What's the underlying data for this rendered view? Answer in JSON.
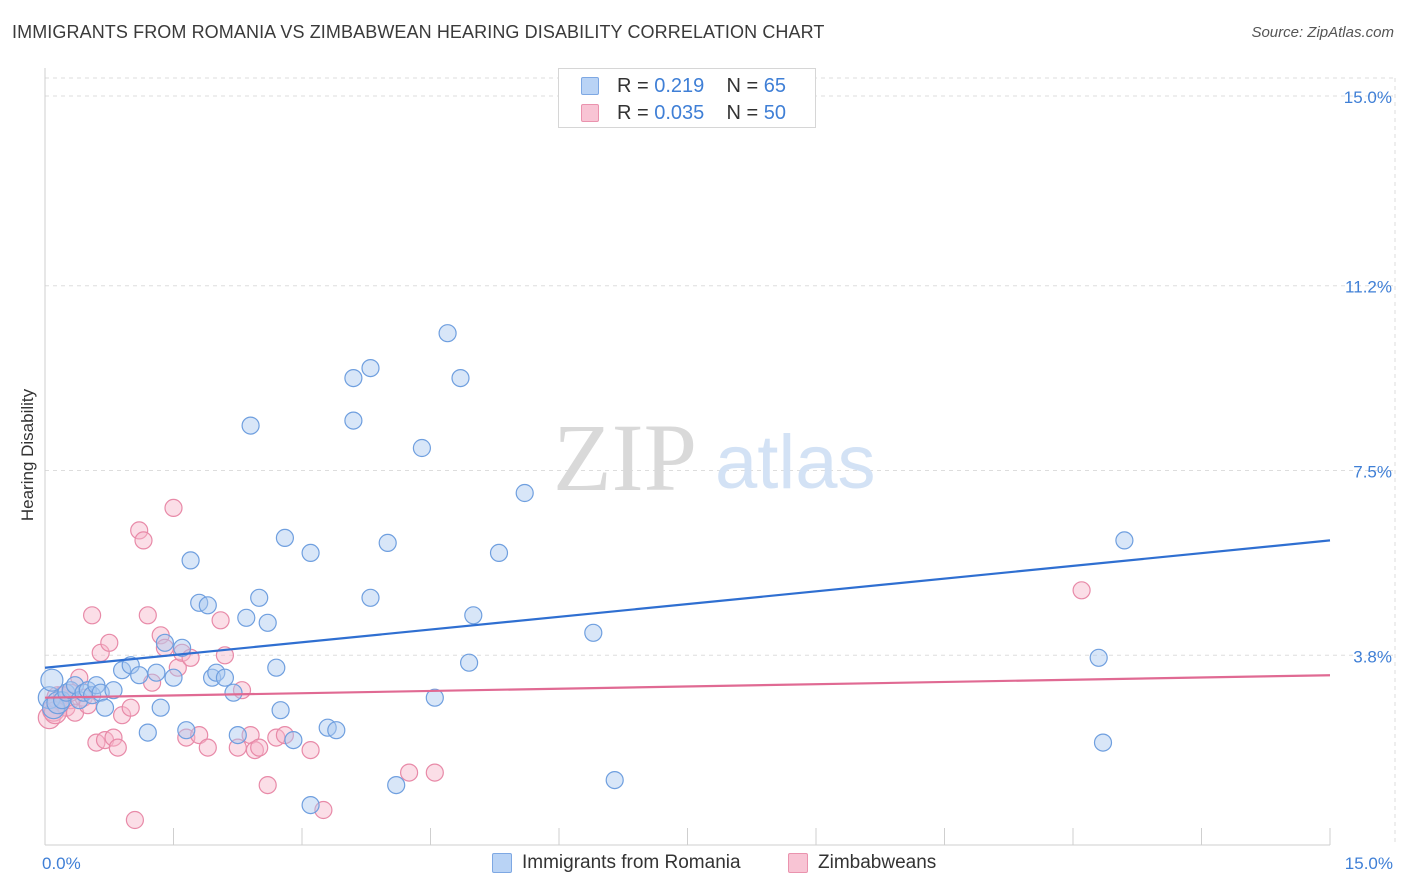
{
  "header": {
    "title": "IMMIGRANTS FROM ROMANIA VS ZIMBABWEAN HEARING DISABILITY CORRELATION CHART",
    "source": "Source: ZipAtlas.com"
  },
  "watermark": {
    "part1": "ZIP",
    "part2": "atlas"
  },
  "legend": {
    "rows": [
      {
        "r_label": "R = ",
        "r_value": "0.219",
        "n_label": "N = ",
        "n_value": "65"
      },
      {
        "r_label": "R = ",
        "r_value": "0.035",
        "n_label": "N = ",
        "n_value": "50"
      }
    ]
  },
  "colors": {
    "blue_fill": "#a9c7f0",
    "blue_stroke": "#6f9fdf",
    "blue_line": "#2f6fd1",
    "pink_fill": "#f6b5c9",
    "pink_stroke": "#e88aa8",
    "pink_line": "#e06a93",
    "tick_label": "#3f7fd6",
    "grid": "#dddddd"
  },
  "chart_data": {
    "type": "scatter",
    "title": "IMMIGRANTS FROM ROMANIA VS ZIMBABWEAN HEARING DISABILITY CORRELATION CHART",
    "xlabel": "",
    "ylabel": "Hearing Disability",
    "xlim": [
      0,
      15
    ],
    "ylim": [
      0,
      15.5
    ],
    "x_tick_labels": [
      "0.0%",
      "15.0%"
    ],
    "y_ticks": [
      3.8,
      7.5,
      11.2,
      15.0
    ],
    "y_tick_labels": [
      "3.8%",
      "7.5%",
      "11.2%",
      "15.0%"
    ],
    "grid": true,
    "legend_position": "top-center",
    "series": [
      {
        "name": "Immigrants from Romania",
        "color": "blue",
        "r": "0.219",
        "n": "65",
        "trend": {
          "x": [
            0,
            15
          ],
          "y": [
            3.55,
            6.1
          ]
        },
        "points": [
          [
            0.05,
            2.95
          ],
          [
            0.1,
            2.75
          ],
          [
            0.15,
            2.85
          ],
          [
            0.2,
            2.9
          ],
          [
            0.25,
            3.05
          ],
          [
            0.3,
            3.1
          ],
          [
            0.35,
            3.2
          ],
          [
            0.4,
            2.9
          ],
          [
            0.45,
            3.05
          ],
          [
            0.5,
            3.1
          ],
          [
            0.55,
            3.0
          ],
          [
            0.6,
            3.2
          ],
          [
            0.65,
            3.05
          ],
          [
            0.7,
            2.75
          ],
          [
            0.8,
            3.1
          ],
          [
            0.9,
            3.5
          ],
          [
            1.0,
            3.6
          ],
          [
            1.1,
            3.4
          ],
          [
            1.2,
            2.25
          ],
          [
            1.3,
            3.45
          ],
          [
            1.35,
            2.75
          ],
          [
            1.4,
            4.05
          ],
          [
            1.5,
            3.35
          ],
          [
            1.6,
            3.95
          ],
          [
            1.65,
            2.3
          ],
          [
            1.7,
            5.7
          ],
          [
            1.8,
            4.85
          ],
          [
            1.9,
            4.8
          ],
          [
            1.95,
            3.35
          ],
          [
            2.0,
            3.45
          ],
          [
            2.1,
            3.35
          ],
          [
            2.2,
            3.05
          ],
          [
            2.25,
            2.2
          ],
          [
            2.35,
            4.55
          ],
          [
            2.4,
            8.4
          ],
          [
            2.5,
            4.95
          ],
          [
            2.6,
            4.45
          ],
          [
            2.7,
            3.55
          ],
          [
            2.75,
            2.7
          ],
          [
            2.8,
            6.15
          ],
          [
            2.9,
            2.1
          ],
          [
            3.1,
            5.85
          ],
          [
            3.1,
            0.8
          ],
          [
            3.3,
            2.35
          ],
          [
            3.4,
            2.3
          ],
          [
            3.6,
            8.5
          ],
          [
            3.6,
            9.35
          ],
          [
            3.8,
            4.95
          ],
          [
            3.8,
            9.55
          ],
          [
            4.0,
            6.05
          ],
          [
            4.1,
            1.2
          ],
          [
            4.4,
            7.95
          ],
          [
            4.55,
            2.95
          ],
          [
            4.7,
            10.25
          ],
          [
            4.85,
            9.35
          ],
          [
            4.95,
            3.65
          ],
          [
            5.0,
            4.6
          ],
          [
            5.3,
            5.85
          ],
          [
            5.6,
            7.05
          ],
          [
            6.4,
            4.25
          ],
          [
            6.65,
            1.3
          ],
          [
            12.3,
            3.75
          ],
          [
            12.35,
            2.05
          ],
          [
            12.6,
            6.1
          ],
          [
            0.08,
            3.3
          ]
        ]
      },
      {
        "name": "Zimbabweans",
        "color": "pink",
        "r": "0.035",
        "n": "50",
        "trend": {
          "x": [
            0,
            15
          ],
          "y": [
            2.95,
            3.4
          ]
        },
        "points": [
          [
            0.05,
            2.55
          ],
          [
            0.1,
            2.7
          ],
          [
            0.15,
            2.95
          ],
          [
            0.2,
            3.0
          ],
          [
            0.25,
            2.75
          ],
          [
            0.3,
            2.9
          ],
          [
            0.35,
            2.65
          ],
          [
            0.4,
            3.35
          ],
          [
            0.45,
            2.95
          ],
          [
            0.5,
            2.8
          ],
          [
            0.55,
            4.6
          ],
          [
            0.6,
            2.05
          ],
          [
            0.65,
            3.85
          ],
          [
            0.7,
            2.1
          ],
          [
            0.75,
            4.05
          ],
          [
            0.8,
            2.15
          ],
          [
            0.85,
            1.95
          ],
          [
            0.9,
            2.6
          ],
          [
            1.0,
            2.75
          ],
          [
            1.05,
            0.5
          ],
          [
            1.1,
            6.3
          ],
          [
            1.15,
            6.1
          ],
          [
            1.2,
            4.6
          ],
          [
            1.25,
            3.25
          ],
          [
            1.35,
            4.2
          ],
          [
            1.4,
            3.95
          ],
          [
            1.5,
            6.75
          ],
          [
            1.55,
            3.55
          ],
          [
            1.6,
            3.85
          ],
          [
            1.65,
            2.15
          ],
          [
            1.7,
            3.75
          ],
          [
            1.8,
            2.2
          ],
          [
            1.9,
            1.95
          ],
          [
            2.05,
            4.5
          ],
          [
            2.1,
            3.8
          ],
          [
            2.25,
            1.95
          ],
          [
            2.3,
            3.1
          ],
          [
            2.4,
            2.2
          ],
          [
            2.45,
            1.9
          ],
          [
            2.5,
            1.95
          ],
          [
            2.6,
            1.2
          ],
          [
            2.7,
            2.15
          ],
          [
            2.8,
            2.2
          ],
          [
            3.1,
            1.9
          ],
          [
            3.25,
            0.7
          ],
          [
            4.25,
            1.45
          ],
          [
            4.55,
            1.45
          ],
          [
            12.1,
            5.1
          ],
          [
            0.12,
            2.65
          ],
          [
            0.3,
            3.05
          ]
        ]
      }
    ]
  },
  "bottom_legend": {
    "items": [
      "Immigrants from Romania",
      "Zimbabweans"
    ]
  }
}
